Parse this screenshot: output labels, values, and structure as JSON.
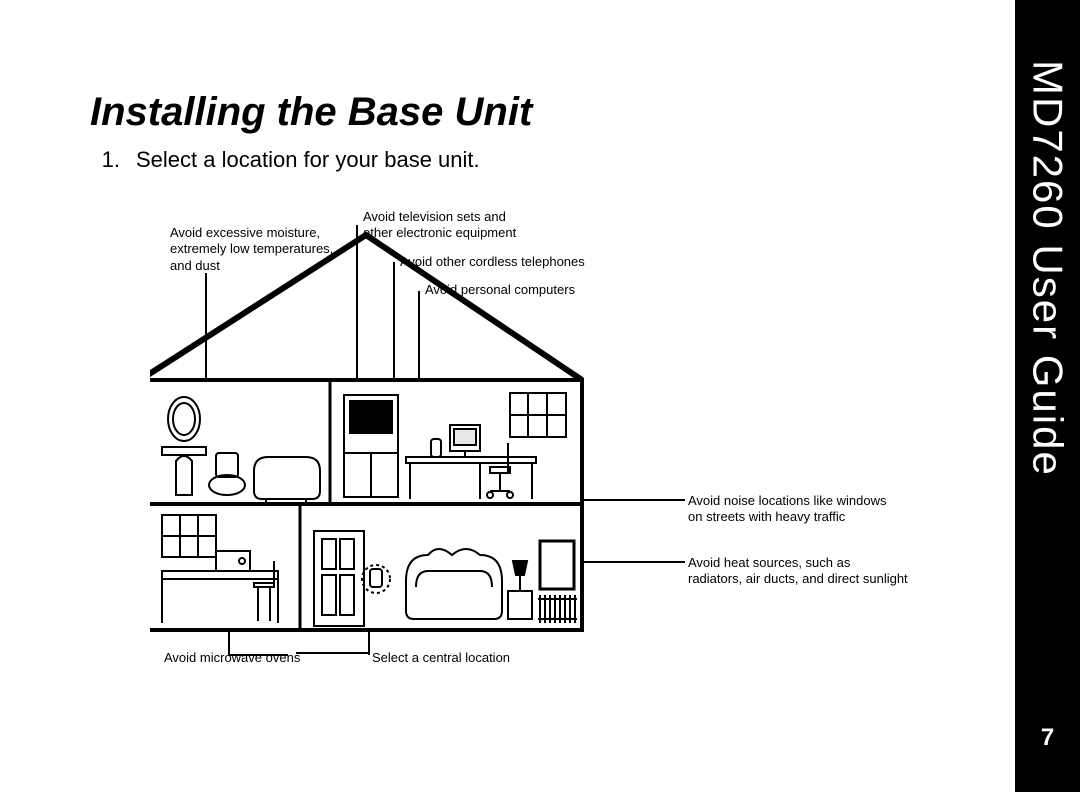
{
  "spine": {
    "title": "MD7260 User Guide",
    "page_number": "7"
  },
  "title": "Installing the Base Unit",
  "step": {
    "num": "1.",
    "text": "Select a location for your base unit."
  },
  "callouts": {
    "moisture": "Avoid excessive moisture,\nextremely low temperatures,\nand dust",
    "tv": "Avoid television sets and\nother electronic equipment",
    "cordless": "Avoid other cordless telephones",
    "pc": "Avoid personal computers",
    "microwave": "Avoid microwave ovens",
    "central": "Select a central location",
    "noise": "Avoid noise locations like windows\non streets with heavy traffic",
    "heat": "Avoid heat sources, such as\nradiators, air ducts, and direct sunlight"
  },
  "style": {
    "bg": "#ffffff",
    "ink": "#000000",
    "callout_fontsize": 13,
    "title_fontsize": 40
  }
}
